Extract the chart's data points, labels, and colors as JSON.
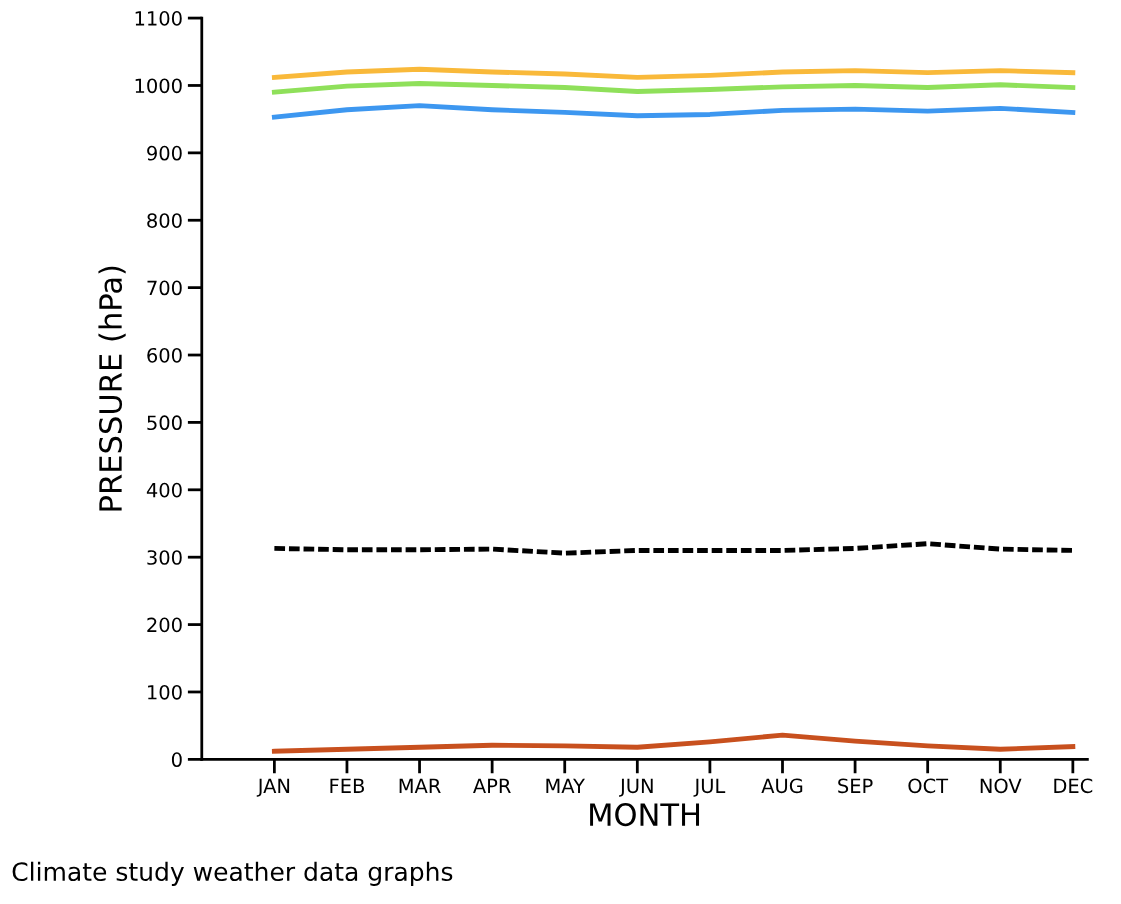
{
  "chart_data": {
    "type": "line",
    "xlabel": "MONTH",
    "ylabel": "PRESSURE (hPa)",
    "categories": [
      "JAN",
      "FEB",
      "MAR",
      "APR",
      "MAY",
      "JUN",
      "JUL",
      "AUG",
      "SEP",
      "OCT",
      "NOV",
      "DEC"
    ],
    "series": [
      {
        "color": "#f9b93a",
        "values": [
          1012,
          1020,
          1024,
          1020,
          1017,
          1012,
          1015,
          1020,
          1022,
          1019,
          1022,
          1019
        ]
      },
      {
        "color": "#8fe05a",
        "values": [
          990,
          999,
          1003,
          1000,
          997,
          991,
          994,
          998,
          1000,
          997,
          1001,
          997
        ]
      },
      {
        "color": "#3d97f0",
        "values": [
          953,
          964,
          970,
          964,
          960,
          955,
          957,
          963,
          965,
          962,
          966,
          960
        ]
      },
      {
        "color": "#000000",
        "line_style": "dashed",
        "values": [
          313,
          311,
          311,
          312,
          306,
          310,
          310,
          310,
          313,
          320,
          312,
          310
        ]
      },
      {
        "color": "#c8501e",
        "values": [
          12,
          15,
          18,
          21,
          20,
          18,
          26,
          36,
          27,
          20,
          15,
          19
        ]
      }
    ],
    "ylim": [
      0,
      1100
    ],
    "yticks": [
      0,
      100,
      200,
      300,
      400,
      500,
      600,
      700,
      800,
      900,
      1000,
      1100
    ],
    "grid": false,
    "marker": "none",
    "line_style": "solid",
    "annotations": [
      "Climate study weather data graphs"
    ]
  }
}
